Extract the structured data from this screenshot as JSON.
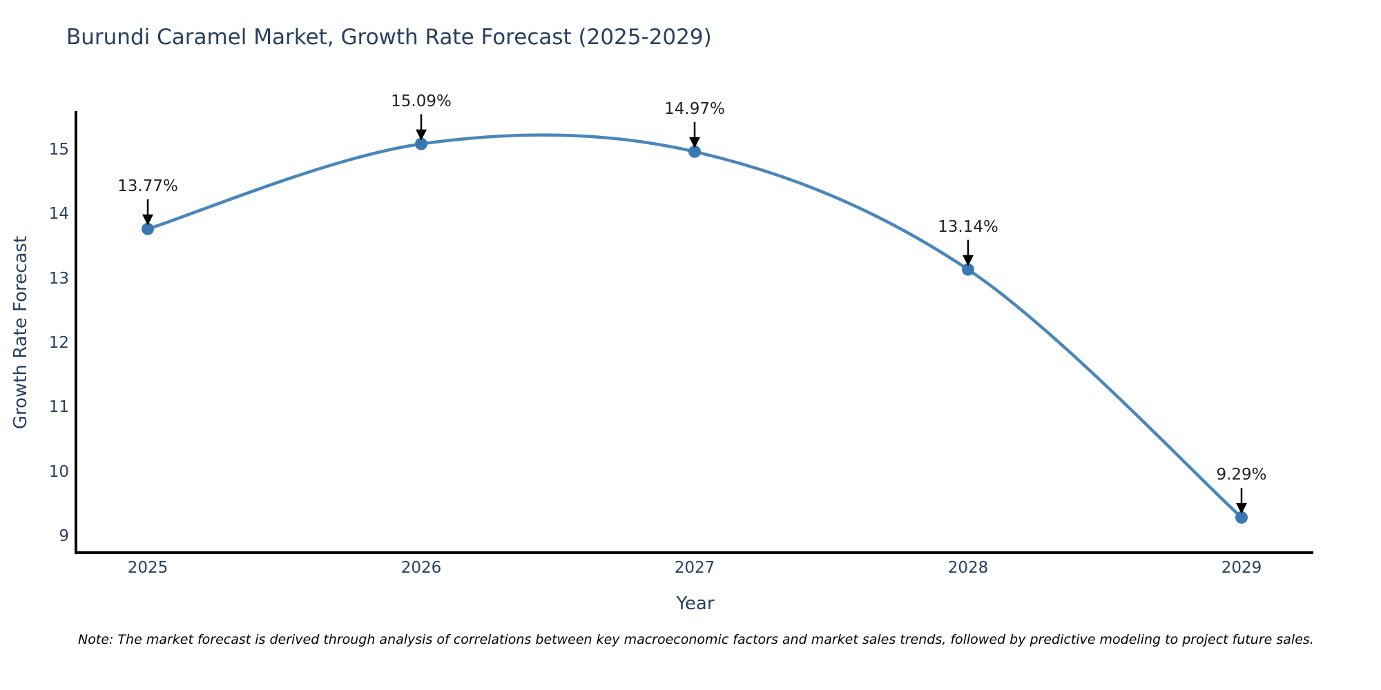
{
  "chart": {
    "title": "Burundi Caramel Market, Growth Rate Forecast (2025-2029)",
    "note": "Note: The market forecast is derived through analysis of correlations between key macroeconomic factors and market sales trends, followed by predictive modeling to project future sales."
  },
  "chart_data": {
    "type": "line",
    "title": "Burundi Caramel Market, Growth Rate Forecast (2025-2029)",
    "xlabel": "Year",
    "ylabel": "Growth Rate Forecast",
    "x": [
      2025,
      2026,
      2027,
      2028,
      2029
    ],
    "series": [
      {
        "name": "Growth Rate Forecast",
        "values": [
          13.77,
          15.09,
          14.97,
          13.14,
          9.29
        ]
      }
    ],
    "data_labels": [
      "13.77%",
      "15.09%",
      "14.97%",
      "13.14%",
      "9.29%"
    ],
    "yticks": [
      9,
      10,
      11,
      12,
      13,
      14,
      15
    ],
    "ylim": [
      8.74,
      15.59
    ],
    "xlim": [
      2024.74,
      2029.26
    ],
    "grid": false,
    "legend": "none",
    "line_shape": "spline",
    "marker": "circle",
    "annotation_arrows": true,
    "colors": {
      "line": "#4a86ba",
      "marker": "#3a78b4",
      "axis": "#000000",
      "arrow": "#000000",
      "heading_text": "#2a3f5f",
      "annotation_text": "#222222"
    }
  }
}
